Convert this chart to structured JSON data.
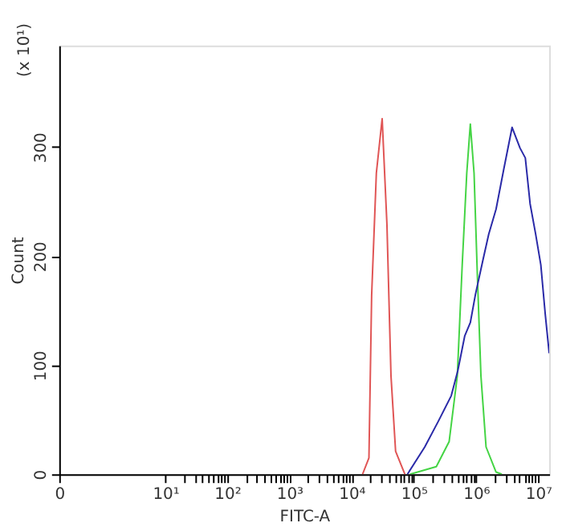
{
  "chart_data": {
    "type": "line",
    "xlabel": "FITC-A",
    "ylabel": "Count",
    "annotations": [
      "(x 10¹)"
    ],
    "log": "x",
    "grid": false,
    "legend": false,
    "marker": "none",
    "line_style": "solid",
    "xlim": [
      0,
      15000000
    ],
    "ylim": [
      0,
      393
    ],
    "xticks": [
      0,
      {
        "value": 10,
        "label": "10¹"
      },
      {
        "value": 100,
        "label": "10²"
      },
      {
        "value": 1000,
        "label": "10³"
      },
      {
        "value": 10000,
        "label": "10⁴"
      },
      {
        "value": 100000,
        "label": "10⁵"
      },
      {
        "value": 1000000,
        "label": "10⁶"
      },
      {
        "value": 10000000,
        "label": "10⁷"
      },
      {
        "value": 20,
        "label": null
      },
      {
        "value": 30,
        "label": null
      },
      {
        "value": 40,
        "label": null
      },
      {
        "value": 50,
        "label": null
      },
      {
        "value": 60,
        "label": null
      },
      {
        "value": 70,
        "label": null
      },
      {
        "value": 80,
        "label": null
      },
      {
        "value": 90,
        "label": null
      },
      {
        "value": 200,
        "label": null
      },
      {
        "value": 300,
        "label": null
      },
      {
        "value": 400,
        "label": null
      },
      {
        "value": 500,
        "label": null
      },
      {
        "value": 600,
        "label": null
      },
      {
        "value": 700,
        "label": null
      },
      {
        "value": 800,
        "label": null
      },
      {
        "value": 900,
        "label": null
      },
      {
        "value": 2000,
        "label": null
      },
      {
        "value": 3000,
        "label": null
      },
      {
        "value": 4000,
        "label": null
      },
      {
        "value": 5000,
        "label": null
      },
      {
        "value": 6000,
        "label": null
      },
      {
        "value": 7000,
        "label": null
      },
      {
        "value": 8000,
        "label": null
      },
      {
        "value": 9000,
        "label": null
      },
      {
        "value": 20000,
        "label": null
      },
      {
        "value": 30000,
        "label": null
      },
      {
        "value": 40000,
        "label": null
      },
      {
        "value": 50000,
        "label": null
      },
      {
        "value": 60000,
        "label": null
      },
      {
        "value": 70000,
        "label": null
      },
      {
        "value": 80000,
        "label": null
      },
      {
        "value": 90000,
        "label": null
      },
      {
        "value": 200000,
        "label": null
      },
      {
        "value": 300000,
        "label": null
      },
      {
        "value": 400000,
        "label": null
      },
      {
        "value": 500000,
        "label": null
      },
      {
        "value": 600000,
        "label": null
      },
      {
        "value": 700000,
        "label": null
      },
      {
        "value": 800000,
        "label": null
      },
      {
        "value": 900000,
        "label": null
      },
      {
        "value": 2000000,
        "label": null
      },
      {
        "value": 3000000,
        "label": null
      },
      {
        "value": 4000000,
        "label": null
      },
      {
        "value": 5000000,
        "label": null
      },
      {
        "value": 6000000,
        "label": null
      },
      {
        "value": 7000000,
        "label": null
      },
      {
        "value": 8000000,
        "label": null
      },
      {
        "value": 9000000,
        "label": null
      }
    ],
    "yticks": [
      0,
      100,
      200,
      300
    ],
    "series": [
      {
        "color": "#e05555",
        "x": [
          15000,
          19000,
          21000,
          25000,
          31000,
          37000,
          43000,
          51000,
          72000
        ],
        "values": [
          0,
          15,
          164,
          276,
          326,
          229,
          90,
          21,
          0
        ]
      },
      {
        "color": "#44d444",
        "x": [
          87000,
          230000,
          370000,
          500000,
          600000,
          710000,
          810000,
          930000,
          1050000,
          1200000,
          1450000,
          2100000,
          2600000
        ],
        "values": [
          0,
          7,
          30,
          90,
          192,
          276,
          321,
          276,
          183,
          90,
          25,
          2,
          0
        ]
      },
      {
        "color": "#2a2aa8",
        "x": [
          79000,
          150000,
          250000,
          400000,
          510000,
          660000,
          810000,
          980000,
          1300000,
          1600000,
          2100000,
          2800000,
          3800000,
          5100000,
          6200000,
          7400000,
          9100000,
          11000000,
          13000000,
          15000000
        ],
        "values": [
          0,
          25,
          49,
          72,
          95,
          127,
          139,
          165,
          197,
          220,
          243,
          280,
          318,
          299,
          290,
          248,
          220,
          192,
          146,
          111
        ]
      }
    ]
  }
}
